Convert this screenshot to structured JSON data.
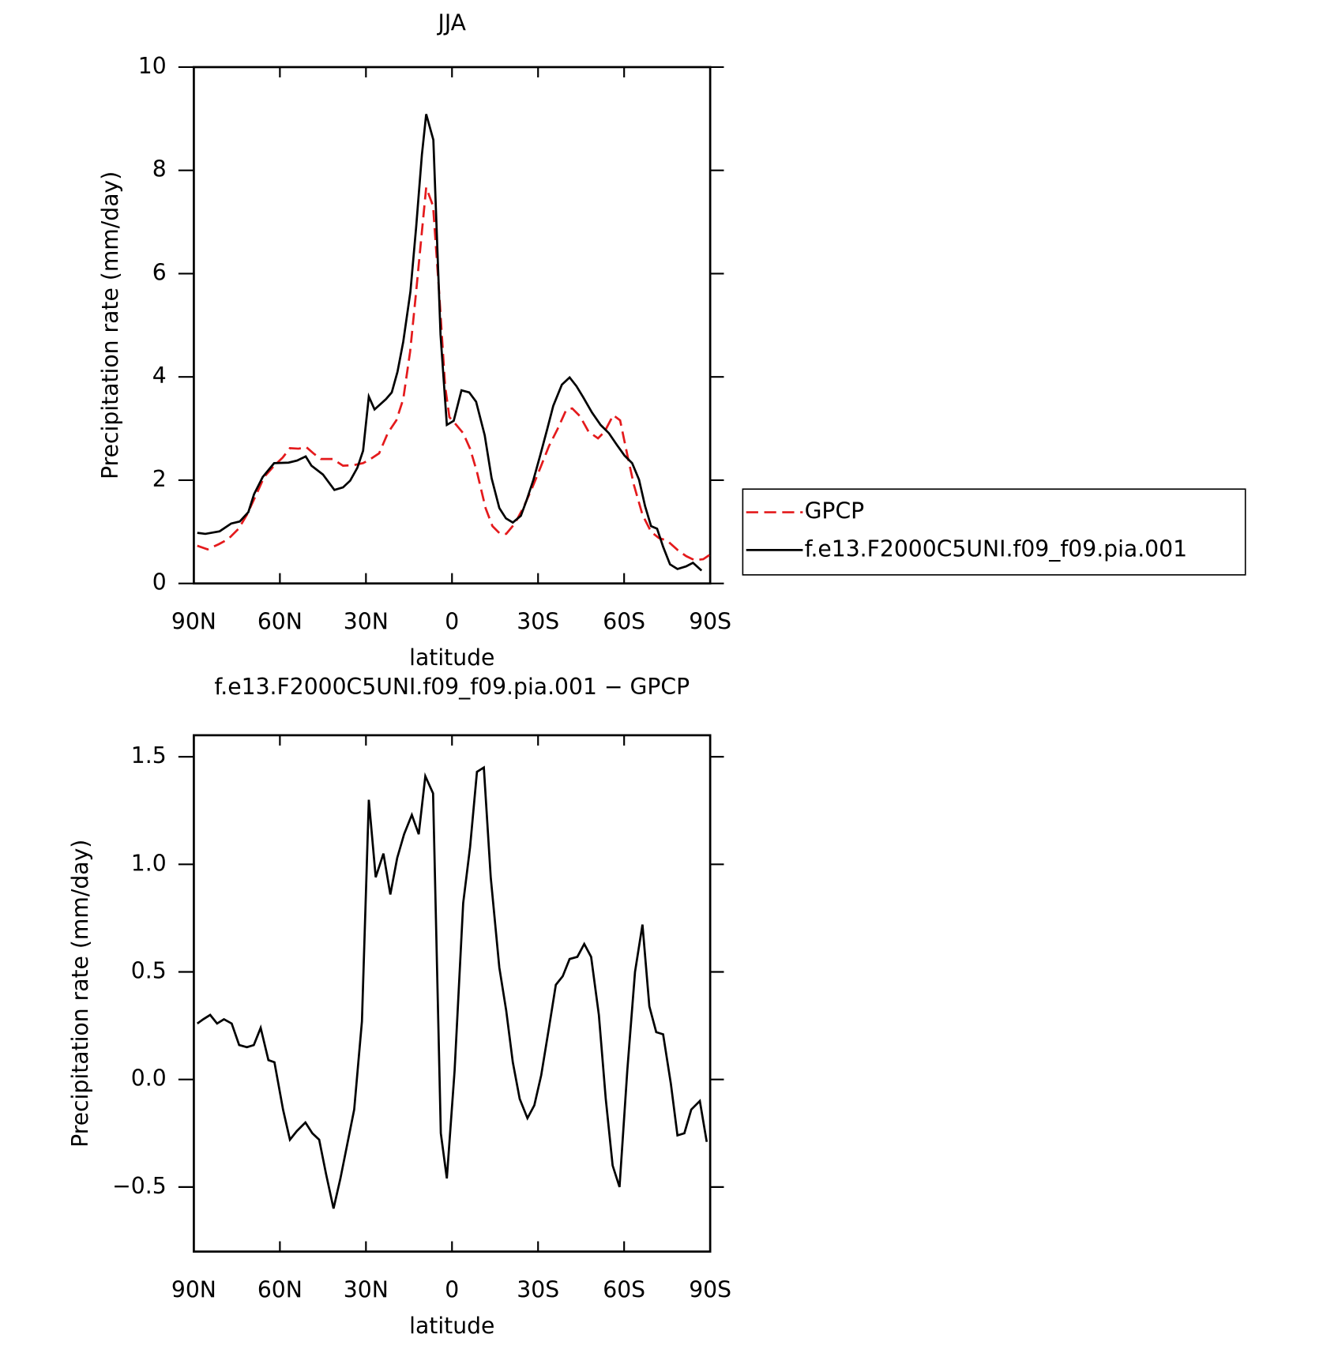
{
  "chart_data": [
    {
      "type": "line",
      "title": "JJA",
      "xlabel": "latitude",
      "ylabel": "Precipitation rate (mm/day)",
      "xlim": [
        90,
        -90
      ],
      "xticks": [
        {
          "value": 90,
          "label": "90N"
        },
        {
          "value": 60,
          "label": "60N"
        },
        {
          "value": 30,
          "label": "30N"
        },
        0,
        {
          "value": -30,
          "label": "30S"
        },
        {
          "value": -60,
          "label": "60S"
        },
        {
          "value": -90,
          "label": "90S"
        }
      ],
      "ylim": [
        0,
        10
      ],
      "yticks": [
        0,
        2,
        4,
        6,
        8,
        10
      ],
      "legend": "right",
      "series": [
        {
          "name": "GPCP",
          "color": "#e41a1c",
          "dashed": true,
          "x": [
            88.8,
            85.2,
            81.3,
            78,
            74.4,
            71.5,
            68.5,
            65.5,
            62,
            59,
            56.5,
            53.5,
            50.8,
            48.1,
            45.7,
            41.6,
            38,
            34.4,
            31,
            28.4,
            25.4,
            22.4,
            19.4,
            17,
            14.6,
            12.5,
            10.5,
            9,
            6.6,
            4.5,
            2.4,
            0.9,
            -1.5,
            -3.9,
            -6.3,
            -8.7,
            -11.7,
            -14.1,
            -16.8,
            -18.9,
            -21.9,
            -24.8,
            -27.8,
            -30.8,
            -33.8,
            -36.8,
            -39.8,
            -41.9,
            -44.6,
            -47.6,
            -50.9,
            -53.2,
            -56.2,
            -58.6,
            -61,
            -63.4,
            -66.4,
            -69.4,
            -72.1,
            -75,
            -78.6,
            -81.6,
            -84.6,
            -87.6,
            -89.7
          ],
          "values": [
            0.73,
            0.66,
            0.76,
            0.86,
            1.06,
            1.33,
            1.69,
            2.06,
            2.28,
            2.44,
            2.62,
            2.61,
            2.64,
            2.51,
            2.41,
            2.41,
            2.28,
            2.29,
            2.33,
            2.41,
            2.52,
            2.91,
            3.16,
            3.57,
            4.49,
            5.65,
            6.81,
            7.67,
            7.31,
            5.65,
            3.82,
            3.22,
            3.07,
            2.91,
            2.61,
            2.16,
            1.46,
            1.11,
            0.96,
            0.96,
            1.16,
            1.46,
            1.83,
            2.24,
            2.66,
            2.99,
            3.36,
            3.39,
            3.24,
            2.94,
            2.81,
            2.94,
            3.26,
            3.16,
            2.52,
            1.91,
            1.33,
            1.0,
            0.88,
            0.83,
            0.65,
            0.53,
            0.45,
            0.47,
            0.55
          ]
        },
        {
          "name": "f.e13.F2000C5UNI.f09_f09.pia.001",
          "color": "#000000",
          "dashed": false,
          "x": [
            88.8,
            86,
            81,
            77,
            74,
            71,
            69,
            66,
            62,
            57,
            54,
            51,
            49,
            45,
            41,
            38,
            35.5,
            33,
            31,
            29,
            27,
            23,
            21,
            19,
            17,
            14.5,
            12.5,
            10.5,
            9,
            6.5,
            4,
            1.8,
            -0.6,
            -3.3,
            -6,
            -8.4,
            -11.4,
            -13.8,
            -16.5,
            -18.8,
            -21.2,
            -24,
            -26,
            -28.4,
            -30.8,
            -33.2,
            -35.3,
            -38.3,
            -41,
            -43.4,
            -45.8,
            -48.8,
            -51.8,
            -54.7,
            -57.4,
            -60.1,
            -62.8,
            -65.2,
            -67.3,
            -69.4,
            -71.5,
            -73.6,
            -76,
            -78.6,
            -81.6,
            -84,
            -87
          ],
          "values": [
            0.98,
            0.96,
            1.01,
            1.16,
            1.2,
            1.38,
            1.73,
            2.06,
            2.33,
            2.34,
            2.38,
            2.46,
            2.28,
            2.11,
            1.81,
            1.86,
            1.99,
            2.24,
            2.57,
            3.62,
            3.37,
            3.57,
            3.7,
            4.1,
            4.68,
            5.65,
            6.9,
            8.3,
            9.09,
            8.59,
            4.82,
            3.07,
            3.15,
            3.74,
            3.7,
            3.52,
            2.87,
            2.04,
            1.46,
            1.26,
            1.18,
            1.31,
            1.61,
            2.01,
            2.49,
            2.99,
            3.44,
            3.85,
            3.99,
            3.82,
            3.6,
            3.31,
            3.07,
            2.91,
            2.69,
            2.48,
            2.33,
            2.01,
            1.5,
            1.11,
            1.06,
            0.71,
            0.37,
            0.28,
            0.33,
            0.4,
            0.25
          ]
        }
      ]
    },
    {
      "type": "line",
      "title": "f.e13.F2000C5UNI.f09_f09.pia.001 − GPCP",
      "xlabel": "latitude",
      "ylabel": "Precipitation rate (mm/day)",
      "xlim": [
        90,
        -90
      ],
      "xticks": [
        {
          "value": 90,
          "label": "90N"
        },
        {
          "value": 60,
          "label": "60N"
        },
        {
          "value": 30,
          "label": "30N"
        },
        0,
        {
          "value": -30,
          "label": "30S"
        },
        {
          "value": -60,
          "label": "60S"
        },
        {
          "value": -90,
          "label": "90S"
        }
      ],
      "ylim": [
        -0.8,
        1.6
      ],
      "yticks": [
        {
          "value": -0.5,
          "label": "−0.5"
        },
        {
          "value": 0,
          "label": "0.0"
        },
        0.5,
        {
          "value": 1,
          "label": "1.0"
        },
        1.5
      ],
      "series": [
        {
          "color": "#000000",
          "dashed": false,
          "x": [
            88.8,
            86.7,
            84.3,
            81.9,
            79.5,
            76.8,
            74.2,
            71.5,
            69.1,
            66.7,
            64,
            61.9,
            58.9,
            56.5,
            54.1,
            51.1,
            48.7,
            46.3,
            43.9,
            41.3,
            38.9,
            36.5,
            34.1,
            31.4,
            29,
            26.6,
            23.9,
            21.5,
            19.1,
            16.7,
            14,
            11.6,
            9.3,
            6.6,
            3.9,
            1.8,
            -0.9,
            -3.9,
            -6.3,
            -8.7,
            -11.1,
            -13.5,
            -16.5,
            -18.9,
            -21.2,
            -23.6,
            -26.3,
            -28.7,
            -31.1,
            -33.8,
            -36.2,
            -38.6,
            -41,
            -43.7,
            -46.1,
            -48.5,
            -51.2,
            -53.6,
            -56,
            -58.4,
            -61.1,
            -63.8,
            -66.4,
            -68.8,
            -71.2,
            -73.6,
            -76.3,
            -78.6,
            -81,
            -83.4,
            -86.4,
            -88.8
          ],
          "values": [
            0.26,
            0.28,
            0.3,
            0.26,
            0.28,
            0.26,
            0.16,
            0.15,
            0.16,
            0.24,
            0.09,
            0.08,
            -0.14,
            -0.28,
            -0.24,
            -0.2,
            -0.25,
            -0.28,
            -0.44,
            -0.6,
            -0.46,
            -0.3,
            -0.14,
            0.27,
            1.3,
            0.94,
            1.05,
            0.86,
            1.03,
            1.14,
            1.23,
            1.14,
            1.41,
            1.33,
            -0.25,
            -0.46,
            0.04,
            0.82,
            1.08,
            1.43,
            1.45,
            0.94,
            0.52,
            0.32,
            0.08,
            -0.09,
            -0.18,
            -0.12,
            0.02,
            0.24,
            0.44,
            0.48,
            0.56,
            0.57,
            0.63,
            0.57,
            0.3,
            -0.09,
            -0.4,
            -0.5,
            0.04,
            0.5,
            0.72,
            0.34,
            0.22,
            0.21,
            -0.02,
            -0.26,
            -0.25,
            -0.14,
            -0.1,
            -0.29
          ]
        }
      ]
    }
  ]
}
